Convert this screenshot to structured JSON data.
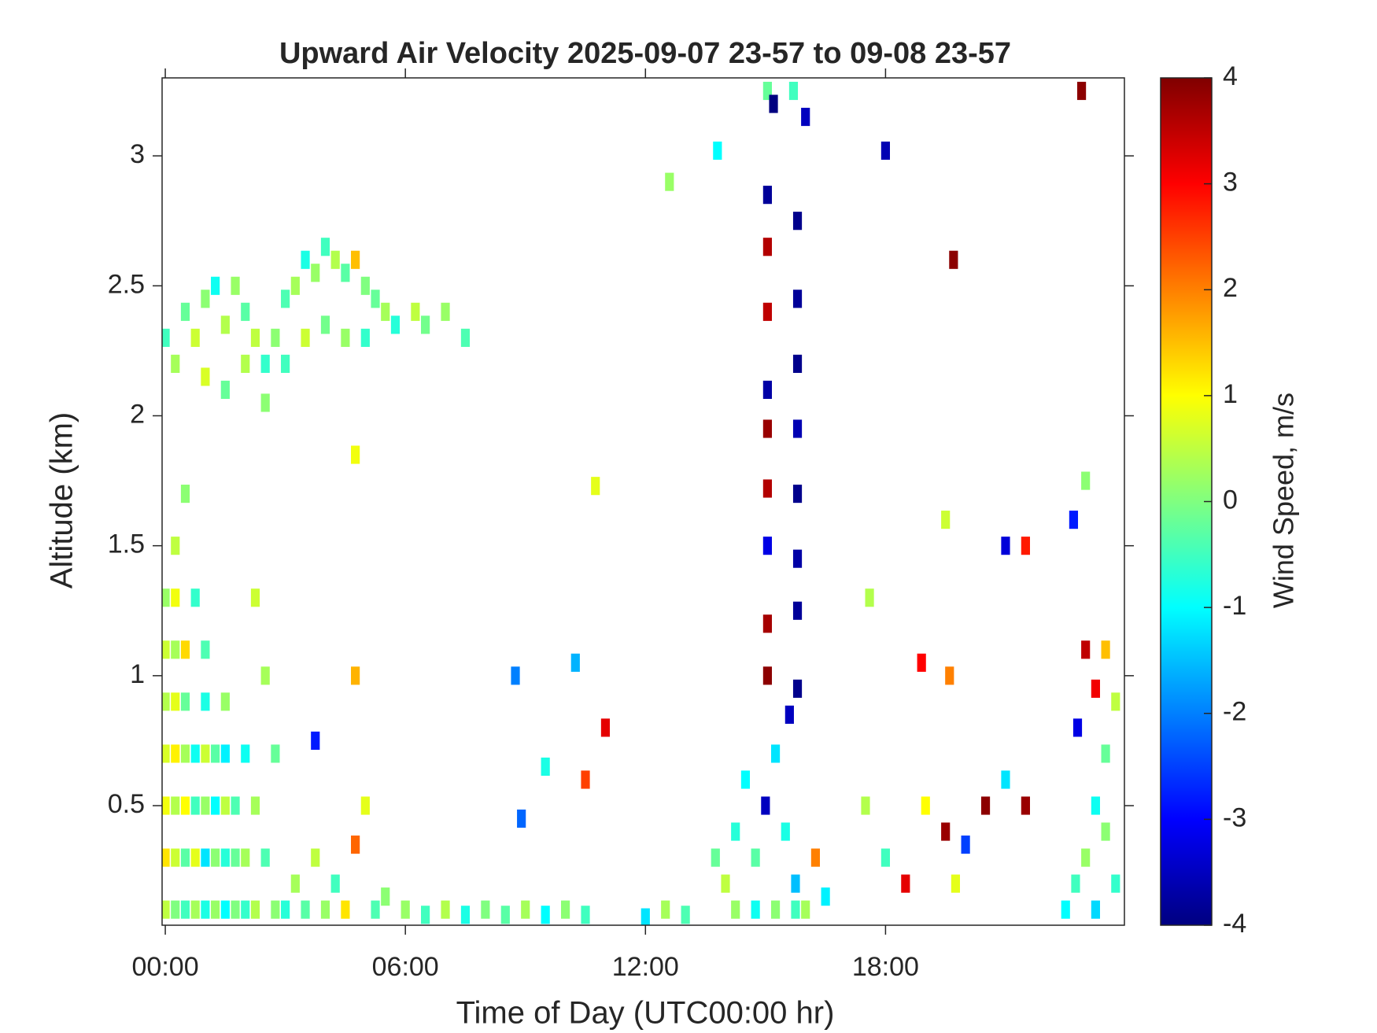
{
  "chart_data": {
    "type": "heatmap",
    "title": "Upward Air Velocity 2025-09-07 23-57 to 09-08 23-57",
    "xlabel": "Time of Day (UTC00:00 hr)",
    "ylabel": "Altitude (km)",
    "colorbar_label": "Wind Speed, m/s",
    "colormap": "jet",
    "xlim": [
      -0.08,
      23.97
    ],
    "ylim": [
      0.04,
      3.3
    ],
    "clim": [
      -4,
      4
    ],
    "xticks": [
      {
        "value": 0,
        "label": "00:00"
      },
      {
        "value": 6,
        "label": "06:00"
      },
      {
        "value": 12,
        "label": "12:00"
      },
      {
        "value": 18,
        "label": "18:00"
      }
    ],
    "yticks": [
      0.5,
      1,
      1.5,
      2,
      2.5,
      3
    ],
    "cticks": [
      -4,
      -3,
      -2,
      -1,
      0,
      1,
      2,
      3,
      4
    ],
    "x": [
      0,
      0.25,
      0.5,
      0.75,
      1,
      1.25,
      1.5,
      1.75,
      2,
      2.25,
      0,
      0.25,
      0.5,
      0.75,
      1,
      1.25,
      1.5,
      1.75,
      2,
      0,
      0.25,
      0.5,
      0.75,
      1,
      1.25,
      1.5,
      1.75,
      0,
      0.25,
      0.5,
      0.75,
      1,
      1.25,
      1.5,
      0,
      0.25,
      0.5,
      1,
      1.5,
      0,
      0.25,
      0.5,
      1,
      0,
      0.25,
      0.75,
      0.25,
      0.5,
      0,
      0.25,
      0.5,
      0.75,
      1,
      1.25,
      1.5,
      1.75,
      2,
      2.25,
      2.5,
      2.75,
      3,
      3.25,
      3.5,
      3.75,
      4,
      4.25,
      4.5,
      4.75,
      5,
      5.25,
      5.5,
      5.75,
      6.25,
      6.5,
      7,
      7.5,
      1,
      1.5,
      2,
      2.5,
      3,
      3.5,
      4,
      4.5,
      5,
      2.5,
      2.75,
      2.25,
      2,
      2.25,
      2.5,
      2.75,
      3,
      3.25,
      3.5,
      3.75,
      4,
      4.25,
      4.5,
      4.75,
      5,
      5.25,
      5.5,
      4.75,
      4.75,
      3.75,
      6,
      6.5,
      7,
      7.5,
      8,
      8.5,
      9,
      9.5,
      10,
      10.5,
      8.9,
      9.5,
      11,
      10.5,
      8.75,
      10.25,
      10.75,
      13,
      12.5,
      12,
      13.75,
      14,
      14.25,
      14.5,
      14.75,
      15,
      15.25,
      15.5,
      15.75,
      14.25,
      14.75,
      15.25,
      15.75,
      16,
      16.25,
      16.5,
      15.05,
      15.2,
      15.05,
      15.05,
      15.05,
      15.05,
      15.05,
      15.05,
      15.05,
      15.05,
      15.05,
      15.8,
      15.8,
      15.8,
      15.8,
      15.8,
      15.8,
      15.8,
      15.8,
      15.6,
      15.7,
      16,
      13.8,
      12.6,
      18,
      19.7,
      22.9,
      17.5,
      18,
      18.5,
      19,
      19.5,
      19.75,
      20,
      20.5,
      21,
      21.5,
      18.9,
      19.6,
      17.6,
      21,
      21.5,
      19.5,
      22.5,
      22.75,
      23,
      23.25,
      23.5,
      23.75,
      23.25,
      23.5,
      23.75,
      23.5,
      23.25,
      23,
      22.8,
      22.7,
      23
    ],
    "y": [
      0.1,
      0.1,
      0.1,
      0.1,
      0.1,
      0.1,
      0.1,
      0.1,
      0.1,
      0.1,
      0.3,
      0.3,
      0.3,
      0.3,
      0.3,
      0.3,
      0.3,
      0.3,
      0.3,
      0.5,
      0.5,
      0.5,
      0.5,
      0.5,
      0.5,
      0.5,
      0.5,
      0.7,
      0.7,
      0.7,
      0.7,
      0.7,
      0.7,
      0.7,
      0.9,
      0.9,
      0.9,
      0.9,
      0.9,
      1.1,
      1.1,
      1.1,
      1.1,
      1.3,
      1.3,
      1.3,
      1.5,
      1.7,
      2.3,
      2.2,
      2.4,
      2.3,
      2.45,
      2.5,
      2.35,
      2.5,
      2.4,
      2.3,
      2.2,
      2.3,
      2.45,
      2.5,
      2.6,
      2.55,
      2.65,
      2.6,
      2.55,
      2.6,
      2.5,
      2.45,
      2.4,
      2.35,
      2.4,
      2.35,
      2.4,
      2.3,
      2.15,
      2.1,
      2.2,
      2.05,
      2.2,
      2.3,
      2.35,
      2.3,
      2.3,
      1.0,
      0.7,
      1.3,
      0.7,
      0.5,
      0.3,
      0.1,
      0.1,
      0.2,
      0.1,
      0.3,
      0.1,
      0.2,
      0.1,
      0.35,
      0.5,
      0.1,
      0.15,
      1.0,
      1.85,
      0.75,
      0.1,
      0.08,
      0.1,
      0.08,
      0.1,
      0.08,
      0.1,
      0.08,
      0.1,
      0.08,
      0.45,
      0.65,
      0.8,
      0.6,
      1.0,
      1.05,
      1.73,
      0.08,
      0.1,
      0.07,
      0.3,
      0.2,
      0.4,
      0.6,
      0.3,
      0.5,
      0.7,
      0.4,
      0.2,
      0.1,
      0.1,
      0.1,
      0.1,
      0.1,
      0.3,
      0.15,
      3.25,
      3.2,
      2.85,
      2.65,
      2.4,
      2.1,
      1.95,
      1.72,
      1.5,
      1.2,
      1.0,
      2.75,
      2.45,
      2.2,
      1.95,
      1.7,
      1.45,
      1.25,
      0.95,
      0.85,
      3.25,
      3.15,
      3.02,
      2.9,
      3.02,
      2.6,
      3.25,
      0.5,
      0.3,
      0.2,
      0.5,
      0.4,
      0.2,
      0.35,
      0.5,
      0.6,
      0.5,
      1.05,
      1.0,
      1.3,
      1.5,
      1.5,
      1.6,
      0.1,
      0.2,
      0.3,
      0.5,
      0.4,
      0.2,
      0.1,
      0.7,
      0.9,
      1.1,
      0.95,
      1.1,
      0.8,
      1.6,
      1.75
    ],
    "values": [
      0.5,
      0,
      -0.5,
      0.3,
      -0.8,
      0.2,
      -1,
      0,
      -0.6,
      0.4,
      1.2,
      0.6,
      -0.3,
      0.8,
      -1.2,
      0.1,
      -0.7,
      -0.2,
      0.3,
      0.9,
      0.4,
      1,
      -0.5,
      0.2,
      -1,
      0.5,
      -0.4,
      0.7,
      1.1,
      0.3,
      -0.9,
      0.6,
      -0.3,
      -1.1,
      0.4,
      0.8,
      -0.2,
      -0.8,
      0.2,
      0.6,
      0.3,
      1.3,
      -0.4,
      0.2,
      0.9,
      -0.6,
      0.5,
      0.1,
      -0.5,
      0.3,
      -0.2,
      0.6,
      0.1,
      -0.9,
      0.4,
      0.2,
      -0.3,
      0.5,
      -0.6,
      0.1,
      -0.4,
      0.3,
      -0.8,
      0.2,
      -0.5,
      0.4,
      -0.3,
      1.5,
      0,
      -0.2,
      0.3,
      -0.7,
      0.5,
      -0.1,
      0.2,
      -0.4,
      0.7,
      -0.2,
      0.4,
      0.1,
      -0.5,
      0.6,
      -0.1,
      0.2,
      -0.6,
      0.3,
      -0.2,
      0.6,
      -0.9,
      0.3,
      -0.4,
      0.1,
      -0.7,
      0.3,
      -0.3,
      0.5,
      0.2,
      -0.5,
      1.2,
      2.2,
      0.8,
      -0.4,
      0.1,
      1.6,
      0.9,
      -2.8,
      0.2,
      -0.5,
      0.4,
      -0.8,
      0,
      -0.3,
      0.3,
      -1,
      0.1,
      -0.5,
      -2.2,
      -0.8,
      3.2,
      2.5,
      -2,
      -1.6,
      0.8,
      -0.4,
      0.3,
      -1.2,
      -0.2,
      0.5,
      -0.7,
      -1,
      -0.3,
      -3.5,
      -1.2,
      -0.8,
      -1.5,
      0.2,
      -0.9,
      0.1,
      -0.5,
      0.3,
      2,
      -1.1,
      -0.2,
      -4,
      -3.8,
      3.6,
      3.5,
      -3.7,
      3.8,
      3.6,
      -3.2,
      3.7,
      3.9,
      -3.9,
      -3.8,
      -3.9,
      -3.6,
      -3.9,
      -3.7,
      -3.8,
      -3.9,
      -3.5,
      -0.5,
      -3.5,
      -1,
      0.2,
      -3.6,
      3.9,
      3.9,
      0.4,
      -0.5,
      3.2,
      1,
      3.8,
      0.8,
      -2.5,
      3.9,
      -1.2,
      3.8,
      3,
      2,
      0.4,
      -3.3,
      2.8,
      0.6,
      -1,
      -0.5,
      0.2,
      -0.9,
      0.1,
      -0.6,
      -1.3,
      -0.2,
      0.5,
      1.5,
      3.1,
      3.5,
      -3.2,
      -2.8,
      0.1
    ]
  }
}
